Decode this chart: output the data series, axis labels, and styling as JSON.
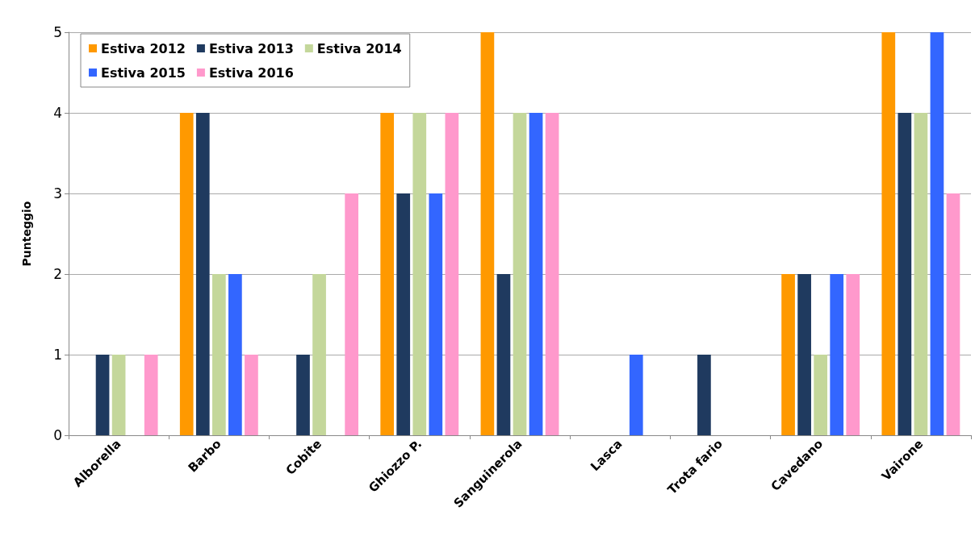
{
  "chart_data": {
    "type": "bar",
    "ylabel": "Punteggio",
    "categories": [
      "Alborella",
      "Barbo",
      "Cobite",
      "Ghiozzo P.",
      "Sanguinerola",
      "Lasca",
      "Trota fario",
      "Cavedano",
      "Vairone"
    ],
    "series": [
      {
        "name": "Estiva 2012",
        "color": "#ff9900",
        "values": [
          0,
          4,
          0,
          4,
          5,
          0,
          0,
          2,
          5
        ]
      },
      {
        "name": "Estiva 2013",
        "color": "#1f3a5f",
        "values": [
          1,
          4,
          1,
          3,
          2,
          0,
          1,
          2,
          4
        ]
      },
      {
        "name": "Estiva 2014",
        "color": "#c4d79b",
        "values": [
          1,
          2,
          2,
          4,
          4,
          0,
          0,
          1,
          4
        ]
      },
      {
        "name": "Estiva 2015",
        "color": "#3366ff",
        "values": [
          0,
          2,
          0,
          3,
          4,
          1,
          0,
          2,
          5
        ]
      },
      {
        "name": "Estiva 2016",
        "color": "#ff99cc",
        "values": [
          1,
          1,
          3,
          4,
          4,
          0,
          0,
          2,
          3
        ]
      }
    ],
    "ylim": [
      0,
      5
    ],
    "yticks": [
      0,
      1,
      2,
      3,
      4,
      5
    ],
    "grid": "y",
    "legend": "top left"
  }
}
